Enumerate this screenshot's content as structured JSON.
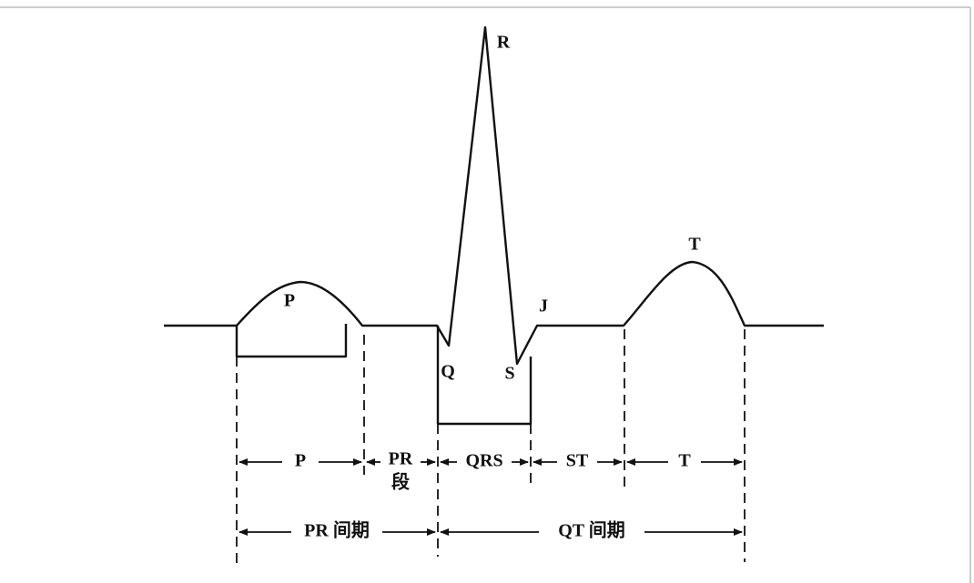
{
  "waves": [
    {
      "label": "P"
    },
    {
      "label": "R"
    },
    {
      "label": "Q"
    },
    {
      "label": "S"
    },
    {
      "label": "J"
    },
    {
      "label": "T"
    }
  ],
  "segments": [
    {
      "label": "P"
    },
    {
      "label": "PR",
      "sublabel": "段"
    },
    {
      "label": "QRS"
    },
    {
      "label": "ST"
    },
    {
      "label": "T"
    }
  ],
  "intervals": [
    {
      "label": "PR 间期"
    },
    {
      "label": "QT 间期"
    }
  ]
}
